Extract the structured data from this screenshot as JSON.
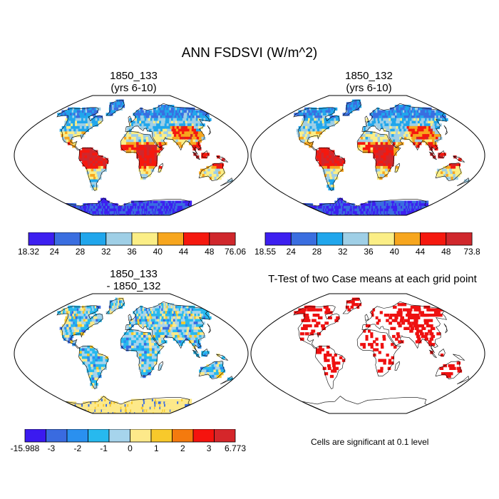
{
  "title": "ANN FSDSVI (W/m^2)",
  "panels": [
    {
      "id": "p1",
      "title": "1850_133\n(yrs 6-10)",
      "kind": "field",
      "palette": "main",
      "colorbar": {
        "labels": [
          "18.32",
          "24",
          "28",
          "32",
          "36",
          "40",
          "44",
          "48",
          "76.06"
        ]
      }
    },
    {
      "id": "p2",
      "title": "1850_132\n(yrs 6-10)",
      "kind": "field",
      "palette": "main",
      "colorbar": {
        "labels": [
          "18.55",
          "24",
          "28",
          "32",
          "36",
          "40",
          "44",
          "48",
          "73.8"
        ]
      }
    },
    {
      "id": "p3",
      "title": "1850_133\n- 1850_132",
      "kind": "diff",
      "palette": "diff",
      "colorbar": {
        "labels": [
          "-15.988",
          "-3",
          "-2",
          "-1",
          "0",
          "1",
          "2",
          "3",
          "6.773"
        ]
      }
    },
    {
      "id": "p4",
      "title": "T-Test of two Case means at each grid point",
      "kind": "ttest",
      "note": "Cells are significant at 0.1 level"
    }
  ],
  "palettes": {
    "main": [
      "#3d1ff0",
      "#3a6ee0",
      "#20a6ec",
      "#9fcfe6",
      "#fbee86",
      "#f7a61e",
      "#f5180e",
      "#d0272c"
    ],
    "diff": [
      "#3b1af0",
      "#3a6be0",
      "#2a90ef",
      "#27b9ee",
      "#a6d4ec",
      "#fde98a",
      "#f8c92b",
      "#f47a0e",
      "#f5130e",
      "#d5262a"
    ]
  },
  "ttest_color": "#ee1111"
}
